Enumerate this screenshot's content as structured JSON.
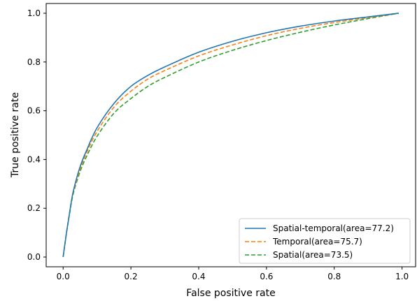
{
  "chart_data": {
    "type": "line",
    "title": "",
    "xlabel": "False positive rate",
    "ylabel": "True positive rate",
    "xlim": [
      -0.05,
      1.04
    ],
    "ylim": [
      -0.04,
      1.04
    ],
    "xticks": [
      0.0,
      0.2,
      0.4,
      0.6,
      0.8,
      1.0
    ],
    "yticks": [
      0.0,
      0.2,
      0.4,
      0.6,
      0.8,
      1.0
    ],
    "xtick_labels": [
      "0.0",
      "0.2",
      "0.4",
      "0.6",
      "0.8",
      "1.0"
    ],
    "ytick_labels": [
      "0.0",
      "0.2",
      "0.4",
      "0.6",
      "0.8",
      "1.0"
    ],
    "grid": false,
    "legend_position": "lower-right",
    "series": [
      {
        "name": "Spatial-temporal(area=77.2)",
        "color": "#1f77b4",
        "style": "solid",
        "x": [
          0.0,
          0.01,
          0.02,
          0.03,
          0.05,
          0.07,
          0.1,
          0.15,
          0.2,
          0.25,
          0.3,
          0.4,
          0.5,
          0.6,
          0.7,
          0.8,
          0.9,
          0.99
        ],
        "y": [
          0.0,
          0.1,
          0.19,
          0.27,
          0.37,
          0.44,
          0.53,
          0.63,
          0.7,
          0.745,
          0.78,
          0.84,
          0.885,
          0.92,
          0.947,
          0.968,
          0.985,
          1.0
        ]
      },
      {
        "name": "Temporal(area=75.7)",
        "color": "#ff7f0e",
        "style": "dashed",
        "x": [
          0.0,
          0.01,
          0.02,
          0.03,
          0.05,
          0.07,
          0.1,
          0.15,
          0.2,
          0.25,
          0.3,
          0.4,
          0.5,
          0.6,
          0.7,
          0.8,
          0.9,
          0.99
        ],
        "y": [
          0.0,
          0.1,
          0.19,
          0.265,
          0.36,
          0.43,
          0.515,
          0.615,
          0.68,
          0.73,
          0.765,
          0.825,
          0.87,
          0.908,
          0.938,
          0.962,
          0.982,
          1.0
        ]
      },
      {
        "name": "Spatial(area=73.5)",
        "color": "#2ca02c",
        "style": "dashed",
        "x": [
          0.0,
          0.01,
          0.02,
          0.03,
          0.05,
          0.07,
          0.1,
          0.15,
          0.2,
          0.25,
          0.3,
          0.4,
          0.5,
          0.6,
          0.7,
          0.8,
          0.9,
          0.99
        ],
        "y": [
          0.0,
          0.1,
          0.185,
          0.26,
          0.35,
          0.415,
          0.495,
          0.59,
          0.65,
          0.7,
          0.737,
          0.8,
          0.848,
          0.888,
          0.922,
          0.952,
          0.978,
          1.0
        ]
      }
    ]
  }
}
